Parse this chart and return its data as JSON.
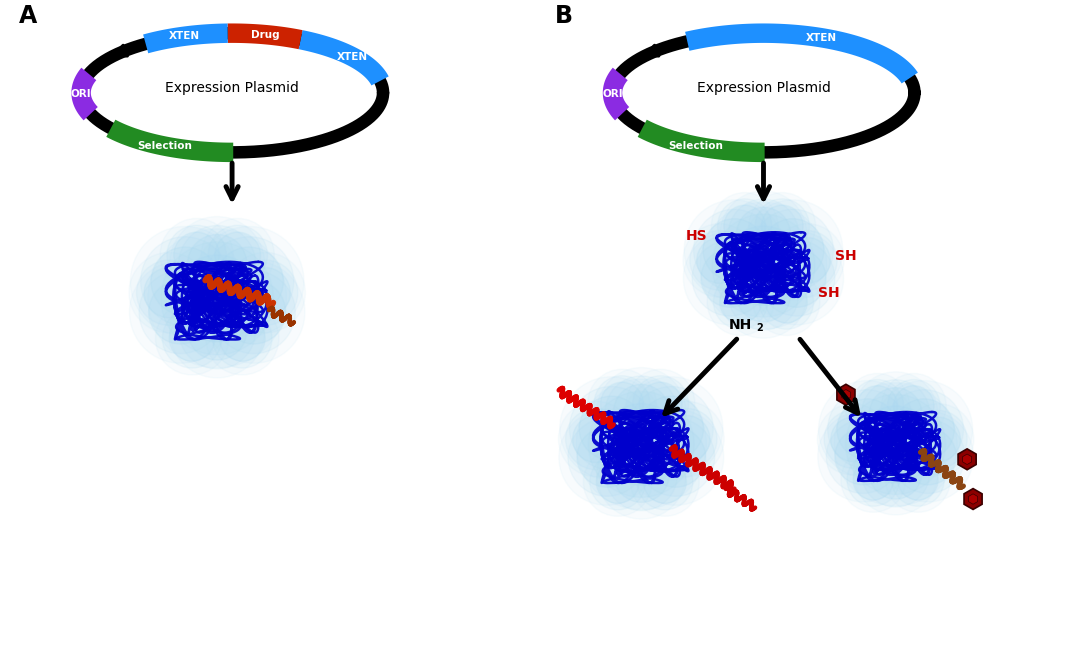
{
  "panel_A_label": "A",
  "panel_B_label": "B",
  "plasmid_text": "Expression Plasmid",
  "bg_color": "#FFFFFF",
  "xten_color": "#1E90FF",
  "drug_color": "#CC2200",
  "ori_color": "#8B2BE2",
  "sel_color": "#228B22",
  "blue_glow": "#A8D8F0",
  "blue_line": "#0000CC",
  "hs_color": "#CC0000",
  "nh2_color": "#000000",
  "protein_color": "#CC3300",
  "small_mol_color": "#8B0000",
  "linker_color": "#8B4513",
  "arrow_lw": 3.5,
  "arrow_mutation": 22
}
